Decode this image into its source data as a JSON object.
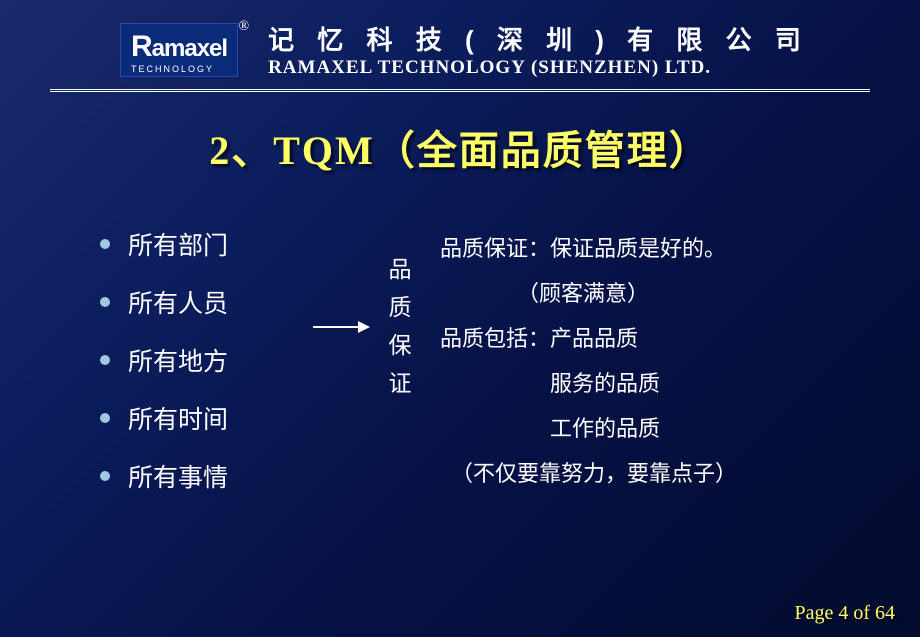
{
  "logo": {
    "brand": "Ramaxel",
    "sub": "TECHNOLOGY",
    "reg": "®"
  },
  "company": {
    "cn": "记 忆 科 技 ( 深  圳 ) 有 限 公 司",
    "en": "RAMAXEL TECHNOLOGY (SHENZHEN) LTD."
  },
  "title": "2、TQM（全面品质管理）",
  "left_items": [
    "所有部门",
    "所有人员",
    "所有地方",
    "所有时间",
    "所有事情"
  ],
  "vertical": "品质保证",
  "right_lines": [
    "品质保证：保证品质是好的。",
    "　　　　（顾客满意）",
    "品质包括：产品品质",
    "　　　　　服务的品质",
    "　　　　　工作的品质",
    "　（不仅要靠努力，要靠点子）"
  ],
  "footer": "Page 4 of 64",
  "colors": {
    "title_color": "#ffff66",
    "text_color": "#ffffff",
    "bullet_color": "#a0c8e0"
  }
}
